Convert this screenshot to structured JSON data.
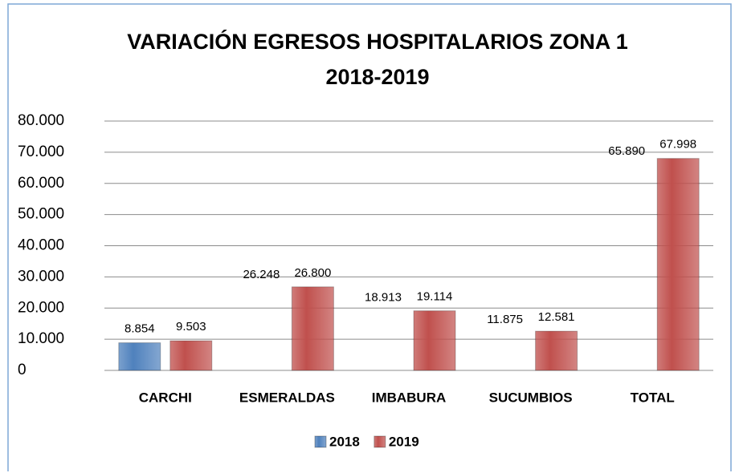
{
  "chart_data": {
    "type": "bar",
    "title": [
      "VARIACIÓN EGRESOS HOSPITALARIOS ZONA 1",
      "2018-2019"
    ],
    "categories": [
      "CARCHI",
      "ESMERALDAS",
      "IMBABURA",
      "SUCUMBIOS",
      "TOTAL"
    ],
    "series": [
      {
        "name": "2018",
        "color": "#4f81bd",
        "colors": [
          "#4f81bd",
          "none",
          "none",
          "none",
          "none"
        ],
        "values": [
          8854,
          26248,
          18913,
          11875,
          65890
        ],
        "value_labels": [
          "8.854",
          "26.248",
          "18.913",
          "11.875",
          "65.890"
        ]
      },
      {
        "name": "2019",
        "color": "#c0504d",
        "values": [
          9503,
          26800,
          19114,
          12581,
          67998
        ],
        "value_labels": [
          "9.503",
          "26.800",
          "19.114",
          "12.581",
          "67.998"
        ]
      }
    ],
    "ylim": [
      0,
      80000
    ],
    "yticks": [
      0,
      {
        "value": 10000,
        "label": "10.000"
      },
      {
        "value": 20000,
        "label": "20.000"
      },
      {
        "value": 30000,
        "label": "30.000"
      },
      {
        "value": 40000,
        "label": "40.000"
      },
      {
        "value": 50000,
        "label": "50.000"
      },
      {
        "value": 60000,
        "label": "60.000"
      },
      {
        "value": 70000,
        "label": "70.000"
      },
      {
        "value": 80000,
        "label": "80.000"
      }
    ],
    "grid": true,
    "legend": "bottom"
  }
}
